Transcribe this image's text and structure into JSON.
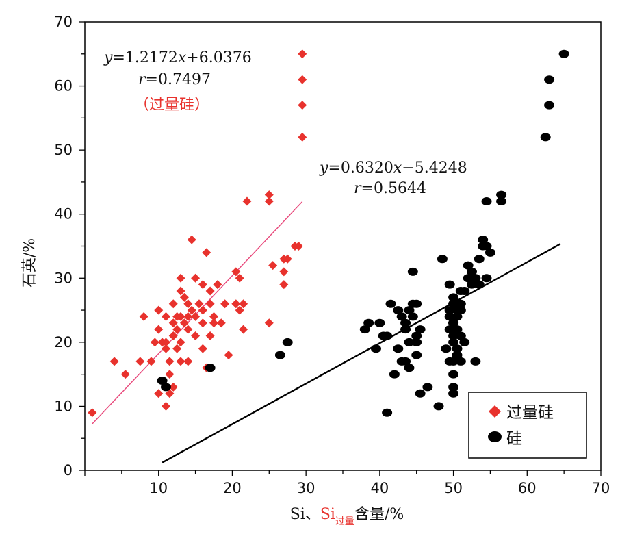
{
  "chart_data": {
    "type": "scatter",
    "x_range": [
      0,
      70
    ],
    "y_range": [
      0,
      70
    ],
    "x_ticks": [
      "10",
      "20",
      "30",
      "40",
      "50",
      "60",
      "70"
    ],
    "y_ticks": [
      "0",
      "10",
      "20",
      "30",
      "40",
      "50",
      "60",
      "70"
    ],
    "xlabel": {
      "prefix": "Si、",
      "red_main": "Si",
      "red_sub": "过量",
      "suffix": "含量/%"
    },
    "ylabel": "石英/%",
    "series": [
      {
        "name": "过量硅",
        "marker": "diamond",
        "color": "#e8322d",
        "points": [
          [
            1,
            9
          ],
          [
            4,
            17
          ],
          [
            5.5,
            15
          ],
          [
            7.5,
            17
          ],
          [
            8,
            24
          ],
          [
            9,
            17
          ],
          [
            9.5,
            20
          ],
          [
            10,
            12
          ],
          [
            10,
            25
          ],
          [
            10,
            22
          ],
          [
            10.5,
            20
          ],
          [
            11,
            10
          ],
          [
            11,
            19
          ],
          [
            11,
            24
          ],
          [
            11,
            20
          ],
          [
            11.5,
            15
          ],
          [
            11.5,
            12
          ],
          [
            11.5,
            17
          ],
          [
            12,
            26
          ],
          [
            12,
            23
          ],
          [
            12,
            21
          ],
          [
            12,
            13
          ],
          [
            12.5,
            24
          ],
          [
            12.5,
            19
          ],
          [
            12.5,
            22
          ],
          [
            13,
            30
          ],
          [
            13,
            24
          ],
          [
            13,
            20
          ],
          [
            13,
            17
          ],
          [
            13,
            28
          ],
          [
            13.5,
            27
          ],
          [
            13.5,
            23
          ],
          [
            14,
            24
          ],
          [
            14,
            22
          ],
          [
            14,
            17
          ],
          [
            14,
            26
          ],
          [
            14.5,
            36
          ],
          [
            14.5,
            25
          ],
          [
            15,
            24
          ],
          [
            15,
            21
          ],
          [
            15,
            30
          ],
          [
            15.5,
            26
          ],
          [
            16,
            29
          ],
          [
            16,
            25
          ],
          [
            16,
            23
          ],
          [
            16,
            19
          ],
          [
            16.5,
            34
          ],
          [
            16.5,
            16
          ],
          [
            17,
            28
          ],
          [
            17,
            21
          ],
          [
            17,
            26
          ],
          [
            17.5,
            24
          ],
          [
            17.5,
            23
          ],
          [
            18,
            29
          ],
          [
            18.5,
            23
          ],
          [
            19,
            26
          ],
          [
            19.5,
            18
          ],
          [
            20.5,
            31
          ],
          [
            20.5,
            26
          ],
          [
            21,
            30
          ],
          [
            21,
            25
          ],
          [
            21.5,
            26
          ],
          [
            21.5,
            22
          ],
          [
            22,
            42
          ],
          [
            25,
            43
          ],
          [
            25,
            42
          ],
          [
            25,
            23
          ],
          [
            25.5,
            32
          ],
          [
            27,
            31
          ],
          [
            27,
            29
          ],
          [
            27,
            33
          ],
          [
            27.5,
            33
          ],
          [
            28.5,
            35
          ],
          [
            29,
            35
          ],
          [
            29.5,
            65
          ],
          [
            29.5,
            61
          ],
          [
            29.5,
            57
          ],
          [
            29.5,
            52
          ]
        ]
      },
      {
        "name": "硅",
        "marker": "ellipse",
        "color": "#000000",
        "points": [
          [
            10.5,
            14
          ],
          [
            11,
            13
          ],
          [
            17,
            16
          ],
          [
            26.5,
            18
          ],
          [
            27.5,
            20
          ],
          [
            38,
            22
          ],
          [
            38.5,
            23
          ],
          [
            39.5,
            19
          ],
          [
            40,
            23
          ],
          [
            40.5,
            21
          ],
          [
            41,
            21
          ],
          [
            41,
            9
          ],
          [
            41.5,
            26
          ],
          [
            42,
            15
          ],
          [
            42.5,
            25
          ],
          [
            42.5,
            19
          ],
          [
            43,
            17
          ],
          [
            43,
            24
          ],
          [
            43.5,
            22
          ],
          [
            43.5,
            17
          ],
          [
            43.5,
            23
          ],
          [
            44,
            25
          ],
          [
            44,
            16
          ],
          [
            44,
            20
          ],
          [
            44.5,
            26
          ],
          [
            44.5,
            24
          ],
          [
            44.5,
            31
          ],
          [
            45,
            18
          ],
          [
            45,
            21
          ],
          [
            45,
            20
          ],
          [
            45,
            26
          ],
          [
            45.5,
            22
          ],
          [
            45.5,
            12
          ],
          [
            46.5,
            13
          ],
          [
            48,
            10
          ],
          [
            48.5,
            33
          ],
          [
            49,
            19
          ],
          [
            49.5,
            29
          ],
          [
            49.5,
            17
          ],
          [
            49.5,
            24
          ],
          [
            49.5,
            22
          ],
          [
            49.5,
            25
          ],
          [
            50,
            20
          ],
          [
            50,
            26
          ],
          [
            50,
            23
          ],
          [
            50,
            21
          ],
          [
            50,
            13
          ],
          [
            50,
            12
          ],
          [
            50,
            15
          ],
          [
            50,
            17
          ],
          [
            50,
            23
          ],
          [
            50,
            27
          ],
          [
            50.5,
            22
          ],
          [
            50.5,
            25
          ],
          [
            50.5,
            18
          ],
          [
            50.5,
            19
          ],
          [
            50.5,
            24
          ],
          [
            51,
            26
          ],
          [
            51,
            28
          ],
          [
            51,
            21
          ],
          [
            51,
            25
          ],
          [
            51,
            17
          ],
          [
            51.5,
            20
          ],
          [
            51.5,
            28
          ],
          [
            52,
            30
          ],
          [
            52,
            32
          ],
          [
            52.5,
            31
          ],
          [
            52.5,
            29
          ],
          [
            53,
            30
          ],
          [
            53,
            17
          ],
          [
            53.5,
            29
          ],
          [
            53.5,
            33
          ],
          [
            54,
            35
          ],
          [
            54,
            36
          ],
          [
            54.5,
            30
          ],
          [
            54.5,
            35
          ],
          [
            54.5,
            42
          ],
          [
            55,
            34
          ],
          [
            56.5,
            42
          ],
          [
            56.5,
            43
          ],
          [
            62.5,
            52
          ],
          [
            63,
            57
          ],
          [
            63,
            61
          ],
          [
            65,
            65
          ]
        ]
      }
    ],
    "fits": [
      {
        "series": "过量硅",
        "color": "#e8477a",
        "x_from": 1,
        "x_to": 29.5,
        "slope": 1.2172,
        "intercept": 6.0376,
        "equation": {
          "y_var": "y",
          "eq1": "=1.2172",
          "x_var": "x",
          "eq2": "+6.0376"
        },
        "r": {
          "r_var": "r",
          "rest": "=0.7497"
        },
        "note": "（过量硅）"
      },
      {
        "series": "硅",
        "color": "#000000",
        "x_from": 10.5,
        "x_to": 64.5,
        "slope": 0.632,
        "intercept": -5.4248,
        "equation": {
          "y_var": "y",
          "eq1": "=0.6320",
          "x_var": "x",
          "eq2": "−5.4248"
        },
        "r": {
          "r_var": "r",
          "rest": "=0.5644"
        }
      }
    ],
    "legend": {
      "placement": "bottom-right",
      "items": [
        {
          "label": "过量硅",
          "marker": "diamond",
          "color": "#e8322d"
        },
        {
          "label": "硅",
          "marker": "ellipse",
          "color": "#000000"
        }
      ]
    },
    "grid": false
  }
}
